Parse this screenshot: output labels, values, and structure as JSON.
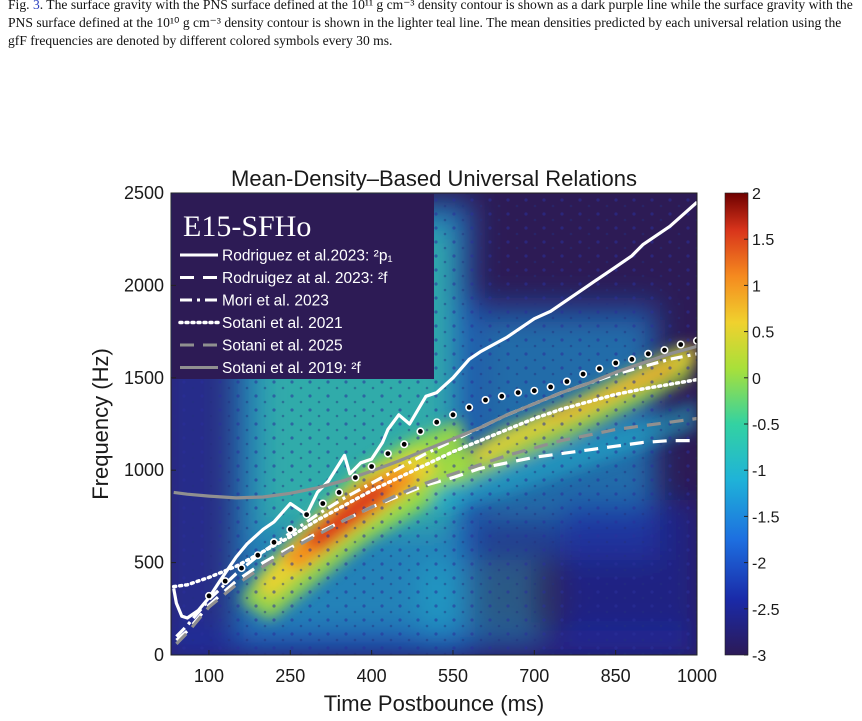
{
  "caption": {
    "pre": "Fig. ",
    "ref": "3",
    "post": ". The surface gravity with the PNS surface defined at the 10¹¹ g cm⁻³ density contour is shown as a dark purple line while the surface gravity with the PNS surface defined at the 10¹⁰ g cm⁻³ density contour is shown in the lighter teal line. The mean densities predicted by each universal relation using the gfF frequencies are denoted by different colored symbols every 30 ms."
  },
  "chart_data": {
    "type": "heatmap",
    "title": "Mean-Density–Based Universal Relations",
    "xlabel": "Time Postbounce (ms)",
    "ylabel": "Frequency (Hz)",
    "xlim": [
      30,
      1000
    ],
    "ylim": [
      0,
      2500
    ],
    "xticks": [
      "100",
      "250",
      "400",
      "550",
      "700",
      "850",
      "1000"
    ],
    "yticks": [
      "0",
      "500",
      "1000",
      "1500",
      "2000",
      "2500"
    ],
    "panel_label": "E15-SFHo",
    "colorbar": {
      "min": -3,
      "max": 2,
      "ticks": [
        "2",
        "1.5",
        "1",
        "0.5",
        "0",
        "-0.5",
        "-1",
        "-1.5",
        "-2",
        "-2.5",
        "-3"
      ],
      "colormap": "jet"
    },
    "legend_position": "top-left",
    "series": [
      {
        "name": "Rodriguez et al.2023: ²p₁",
        "color": "#ffffff",
        "style": "solid",
        "x": [
          35,
          40,
          50,
          60,
          80,
          100,
          120,
          150,
          170,
          200,
          220,
          250,
          280,
          300,
          320,
          350,
          360,
          380,
          400,
          420,
          430,
          450,
          470,
          500,
          520,
          550,
          580,
          600,
          650,
          700,
          730,
          750,
          800,
          850,
          880,
          900,
          950,
          1000
        ],
        "y": [
          360,
          280,
          210,
          200,
          240,
          310,
          400,
          530,
          600,
          680,
          720,
          820,
          760,
          880,
          940,
          1080,
          980,
          1040,
          1060,
          1150,
          1220,
          1300,
          1250,
          1400,
          1420,
          1500,
          1600,
          1640,
          1720,
          1820,
          1860,
          1900,
          2000,
          2100,
          2160,
          2220,
          2320,
          2450
        ]
      },
      {
        "name": "Rodruigez at al. 2023: ²f",
        "color": "#ffffff",
        "style": "dashed",
        "x": [
          40,
          60,
          80,
          100,
          150,
          200,
          250,
          300,
          350,
          400,
          450,
          500,
          550,
          600,
          650,
          700,
          750,
          800,
          850,
          900,
          950,
          1000
        ],
        "y": [
          80,
          130,
          200,
          270,
          400,
          500,
          580,
          660,
          730,
          800,
          860,
          920,
          960,
          1010,
          1040,
          1070,
          1090,
          1110,
          1130,
          1150,
          1160,
          1160
        ]
      },
      {
        "name": "Mori et al. 2023",
        "color": "#ffffff",
        "style": "dashdot",
        "x": [
          40,
          60,
          80,
          100,
          150,
          200,
          250,
          300,
          350,
          400,
          450,
          500,
          550,
          600,
          650,
          700,
          750,
          800,
          850,
          900,
          950,
          1000
        ],
        "y": [
          100,
          160,
          230,
          300,
          440,
          560,
          660,
          760,
          850,
          930,
          1010,
          1090,
          1160,
          1230,
          1300,
          1360,
          1420,
          1470,
          1520,
          1560,
          1600,
          1630
        ]
      },
      {
        "name": "Sotani et al. 2021",
        "color": "#ffffff",
        "style": "dotted",
        "x": [
          35,
          60,
          80,
          100,
          150,
          200,
          250,
          300,
          350,
          400,
          450,
          500,
          550,
          600,
          650,
          700,
          750,
          800,
          850,
          900,
          950,
          1000
        ],
        "y": [
          370,
          380,
          400,
          420,
          480,
          560,
          640,
          730,
          810,
          890,
          960,
          1030,
          1100,
          1160,
          1220,
          1280,
          1330,
          1370,
          1410,
          1440,
          1465,
          1490
        ]
      },
      {
        "name": "Sotani et al. 2025",
        "color": "#909090",
        "style": "dashed",
        "x": [
          40,
          60,
          80,
          100,
          150,
          200,
          250,
          300,
          350,
          400,
          450,
          500,
          550,
          600,
          650,
          700,
          750,
          800,
          850,
          900,
          950,
          1000
        ],
        "y": [
          60,
          120,
          190,
          260,
          380,
          480,
          570,
          650,
          730,
          800,
          870,
          930,
          980,
          1030,
          1080,
          1120,
          1160,
          1190,
          1220,
          1240,
          1260,
          1280
        ]
      },
      {
        "name": "Sotani et al. 2019: ²f",
        "color": "#909090",
        "style": "solid",
        "x": [
          35,
          60,
          100,
          150,
          200,
          250,
          300,
          350,
          400,
          450,
          500,
          550,
          600,
          650,
          700,
          750,
          800,
          850,
          900,
          950,
          1000
        ],
        "y": [
          880,
          870,
          860,
          850,
          855,
          875,
          905,
          945,
          995,
          1050,
          1110,
          1170,
          1230,
          1300,
          1360,
          1420,
          1470,
          1530,
          1580,
          1630,
          1670
        ]
      }
    ],
    "markers": {
      "color": "#000000",
      "edge": "#ffffff",
      "x": [
        100,
        130,
        160,
        190,
        220,
        250,
        280,
        310,
        340,
        370,
        400,
        430,
        460,
        490,
        520,
        550,
        580,
        610,
        640,
        670,
        700,
        730,
        760,
        790,
        820,
        850,
        880,
        910,
        940,
        970,
        1000
      ],
      "y": [
        320,
        400,
        470,
        540,
        610,
        680,
        760,
        820,
        880,
        960,
        1020,
        1090,
        1140,
        1210,
        1260,
        1300,
        1340,
        1380,
        1400,
        1420,
        1430,
        1450,
        1480,
        1520,
        1550,
        1580,
        1600,
        1630,
        1650,
        1680,
        1700
      ]
    }
  }
}
